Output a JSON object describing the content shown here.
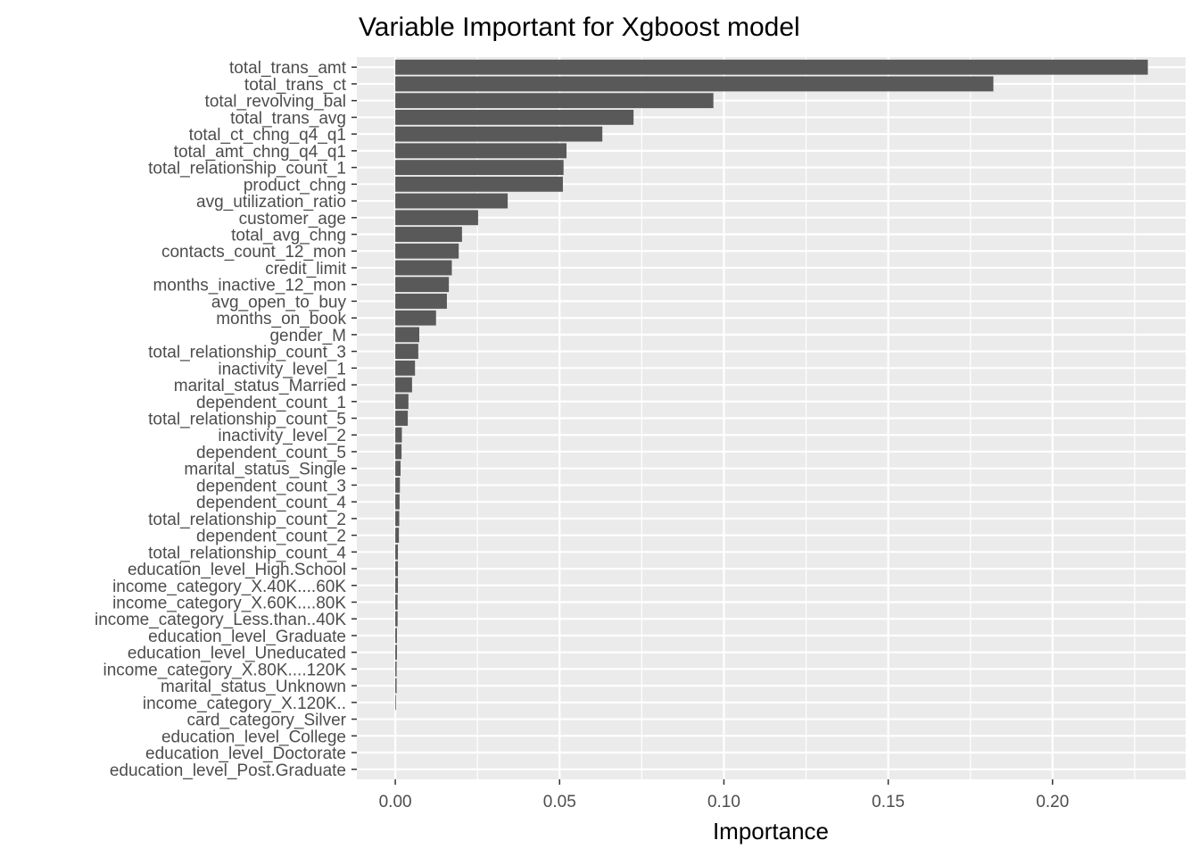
{
  "chart_data": {
    "type": "bar",
    "orientation": "horizontal",
    "title": "Variable Important for Xgboost model",
    "xlabel": "Importance",
    "ylabel": "",
    "xlim": [
      -0.0117,
      0.2405
    ],
    "x_ticks": [
      0,
      0.05,
      0.1,
      0.15,
      0.2
    ],
    "x_tick_labels": [
      "0.00",
      "0.05",
      "0.10",
      "0.15",
      "0.20"
    ],
    "grid": true,
    "legend": "none",
    "colors": {
      "panel_background": "#ebebeb",
      "grid_line": "#ffffff",
      "bar_fill": "#595959",
      "tick_text": "#4d4d4d",
      "tick_mark": "#333333",
      "title_text": "#000000"
    },
    "categories": [
      "total_trans_amt",
      "total_trans_ct",
      "total_revolving_bal",
      "total_trans_avg",
      "total_ct_chng_q4_q1",
      "total_amt_chng_q4_q1",
      "total_relationship_count_1",
      "product_chng",
      "avg_utilization_ratio",
      "customer_age",
      "total_avg_chng",
      "contacts_count_12_mon",
      "credit_limit",
      "months_inactive_12_mon",
      "avg_open_to_buy",
      "months_on_book",
      "gender_M",
      "total_relationship_count_3",
      "inactivity_level_1",
      "marital_status_Married",
      "dependent_count_1",
      "total_relationship_count_5",
      "inactivity_level_2",
      "dependent_count_5",
      "marital_status_Single",
      "dependent_count_3",
      "dependent_count_4",
      "total_relationship_count_2",
      "dependent_count_2",
      "total_relationship_count_4",
      "education_level_High.School",
      "income_category_X.40K....60K",
      "income_category_X.60K....80K",
      "income_category_Less.than..40K",
      "education_level_Graduate",
      "education_level_Uneducated",
      "income_category_X.80K....120K",
      "marital_status_Unknown",
      "income_category_X.120K..",
      "card_category_Silver",
      "education_level_College",
      "education_level_Doctorate",
      "education_level_Post.Graduate"
    ],
    "values": [
      0.229,
      0.182,
      0.0968,
      0.0725,
      0.063,
      0.0521,
      0.0512,
      0.051,
      0.0342,
      0.0252,
      0.0203,
      0.0193,
      0.0172,
      0.0163,
      0.0157,
      0.0124,
      0.0073,
      0.007,
      0.006,
      0.0051,
      0.004,
      0.0038,
      0.002,
      0.0019,
      0.0016,
      0.0014,
      0.0013,
      0.0012,
      0.0011,
      0.0008,
      0.0008,
      0.0008,
      0.0007,
      0.0007,
      0.0005,
      0.0005,
      0.0004,
      0.0004,
      0.0002,
      0.0,
      0.0,
      0.0,
      0.0
    ]
  }
}
